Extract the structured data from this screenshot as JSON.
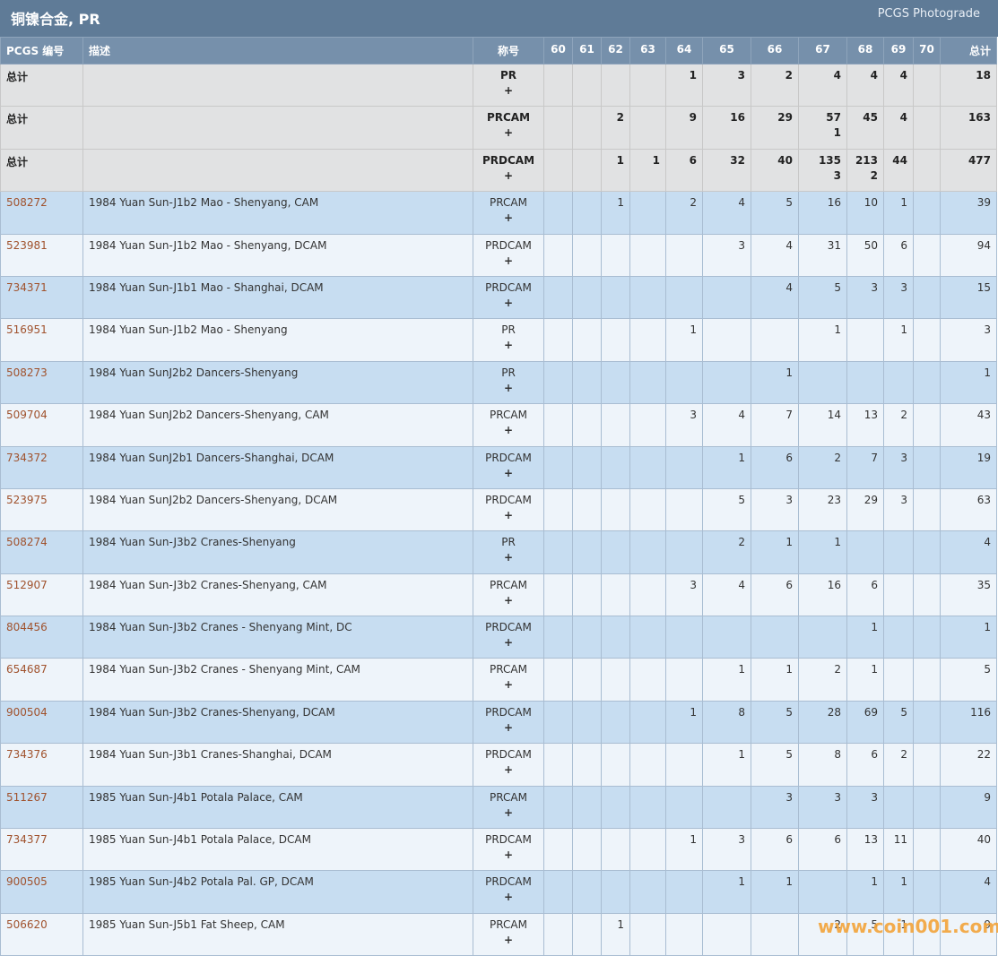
{
  "header": {
    "title": "铜镍合金, PR",
    "link": "PCGS Photograde"
  },
  "table": {
    "columns": [
      "PCGS 编号",
      "描述",
      "称号",
      "60",
      "61",
      "62",
      "63",
      "64",
      "65",
      "66",
      "67",
      "68",
      "69",
      "70",
      "总计"
    ],
    "rows": [
      {
        "id": "总计",
        "desc": null,
        "designation": "PR",
        "expand": "+",
        "grades": [
          null,
          null,
          null,
          null,
          1,
          3,
          2,
          4,
          4,
          4,
          null
        ],
        "total": 18
      },
      {
        "id": "总计",
        "desc": null,
        "designation": "PRCAM",
        "expand": "+",
        "grades": [
          null,
          null,
          2,
          null,
          9,
          16,
          29,
          [
            57,
            1
          ],
          45,
          4,
          null
        ],
        "total": 163
      },
      {
        "id": "总计",
        "desc": null,
        "designation": "PRDCAM",
        "expand": "+",
        "grades": [
          null,
          null,
          1,
          1,
          6,
          32,
          40,
          [
            135,
            3
          ],
          [
            213,
            2
          ],
          44,
          null
        ],
        "total": 477
      },
      {
        "id": "508272",
        "desc": "1984 Yuan Sun-J1b2 Mao - Shenyang, CAM",
        "designation": "PRCAM",
        "expand": "+",
        "grades": [
          null,
          null,
          1,
          null,
          2,
          4,
          5,
          16,
          10,
          1,
          null
        ],
        "total": 39
      },
      {
        "id": "523981",
        "desc": "1984 Yuan Sun-J1b2 Mao - Shenyang, DCAM",
        "designation": "PRDCAM",
        "expand": "+",
        "grades": [
          null,
          null,
          null,
          null,
          null,
          3,
          4,
          31,
          50,
          6,
          null
        ],
        "total": 94
      },
      {
        "id": "734371",
        "desc": "1984 Yuan Sun-J1b1 Mao - Shanghai, DCAM",
        "designation": "PRDCAM",
        "expand": "+",
        "grades": [
          null,
          null,
          null,
          null,
          null,
          null,
          4,
          5,
          3,
          3,
          null
        ],
        "total": 15
      },
      {
        "id": "516951",
        "desc": "1984 Yuan Sun-J1b2 Mao - Shenyang",
        "designation": "PR",
        "expand": "+",
        "grades": [
          null,
          null,
          null,
          null,
          1,
          null,
          null,
          1,
          null,
          1,
          null
        ],
        "total": 3
      },
      {
        "id": "508273",
        "desc": "1984 Yuan SunJ2b2 Dancers-Shenyang",
        "designation": "PR",
        "expand": "+",
        "grades": [
          null,
          null,
          null,
          null,
          null,
          null,
          1,
          null,
          null,
          null,
          null
        ],
        "total": 1
      },
      {
        "id": "509704",
        "desc": "1984 Yuan SunJ2b2 Dancers-Shenyang, CAM",
        "designation": "PRCAM",
        "expand": "+",
        "grades": [
          null,
          null,
          null,
          null,
          3,
          4,
          7,
          14,
          13,
          2,
          null
        ],
        "total": 43
      },
      {
        "id": "734372",
        "desc": "1984 Yuan SunJ2b1 Dancers-Shanghai, DCAM",
        "designation": "PRDCAM",
        "expand": "+",
        "grades": [
          null,
          null,
          null,
          null,
          null,
          1,
          6,
          2,
          7,
          3,
          null
        ],
        "total": 19
      },
      {
        "id": "523975",
        "desc": "1984 Yuan SunJ2b2 Dancers-Shenyang, DCAM",
        "designation": "PRDCAM",
        "expand": "+",
        "grades": [
          null,
          null,
          null,
          null,
          null,
          5,
          3,
          23,
          29,
          3,
          null
        ],
        "total": 63
      },
      {
        "id": "508274",
        "desc": "1984 Yuan Sun-J3b2 Cranes-Shenyang",
        "designation": "PR",
        "expand": "+",
        "grades": [
          null,
          null,
          null,
          null,
          null,
          2,
          1,
          1,
          null,
          null,
          null
        ],
        "total": 4
      },
      {
        "id": "512907",
        "desc": "1984 Yuan Sun-J3b2 Cranes-Shenyang, CAM",
        "designation": "PRCAM",
        "expand": "+",
        "grades": [
          null,
          null,
          null,
          null,
          3,
          4,
          6,
          16,
          6,
          null,
          null
        ],
        "total": 35
      },
      {
        "id": "804456",
        "desc": "1984 Yuan Sun-J3b2 Cranes - Shenyang Mint, DC",
        "designation": "PRDCAM",
        "expand": "+",
        "grades": [
          null,
          null,
          null,
          null,
          null,
          null,
          null,
          null,
          1,
          null,
          null
        ],
        "total": 1
      },
      {
        "id": "654687",
        "desc": "1984 Yuan Sun-J3b2 Cranes - Shenyang Mint, CAM",
        "designation": "PRCAM",
        "expand": "+",
        "grades": [
          null,
          null,
          null,
          null,
          null,
          1,
          1,
          2,
          1,
          null,
          null
        ],
        "total": 5
      },
      {
        "id": "900504",
        "desc": "1984 Yuan Sun-J3b2 Cranes-Shenyang, DCAM",
        "designation": "PRDCAM",
        "expand": "+",
        "grades": [
          null,
          null,
          null,
          null,
          1,
          8,
          5,
          28,
          69,
          5,
          null
        ],
        "total": 116
      },
      {
        "id": "734376",
        "desc": "1984 Yuan Sun-J3b1 Cranes-Shanghai, DCAM",
        "designation": "PRDCAM",
        "expand": "+",
        "grades": [
          null,
          null,
          null,
          null,
          null,
          1,
          5,
          8,
          6,
          2,
          null
        ],
        "total": 22
      },
      {
        "id": "511267",
        "desc": "1985 Yuan Sun-J4b1 Potala Palace, CAM",
        "designation": "PRCAM",
        "expand": "+",
        "grades": [
          null,
          null,
          null,
          null,
          null,
          null,
          3,
          3,
          3,
          null,
          null
        ],
        "total": 9
      },
      {
        "id": "734377",
        "desc": "1985 Yuan Sun-J4b1 Potala Palace, DCAM",
        "designation": "PRDCAM",
        "expand": "+",
        "grades": [
          null,
          null,
          null,
          null,
          1,
          3,
          6,
          6,
          13,
          11,
          null
        ],
        "total": 40
      },
      {
        "id": "900505",
        "desc": "1985 Yuan Sun-J4b2 Potala Pal. GP, DCAM",
        "designation": "PRDCAM",
        "expand": "+",
        "grades": [
          null,
          null,
          null,
          null,
          null,
          1,
          1,
          null,
          1,
          1,
          null
        ],
        "total": 4
      },
      {
        "id": "506620",
        "desc": "1985 Yuan Sun-J5b1 Fat Sheep, CAM",
        "designation": "PRCAM",
        "expand": "+",
        "grades": [
          null,
          null,
          1,
          null,
          null,
          null,
          null,
          2,
          5,
          1,
          null
        ],
        "total": 9
      }
    ]
  },
  "watermark": "www.coin001.com"
}
